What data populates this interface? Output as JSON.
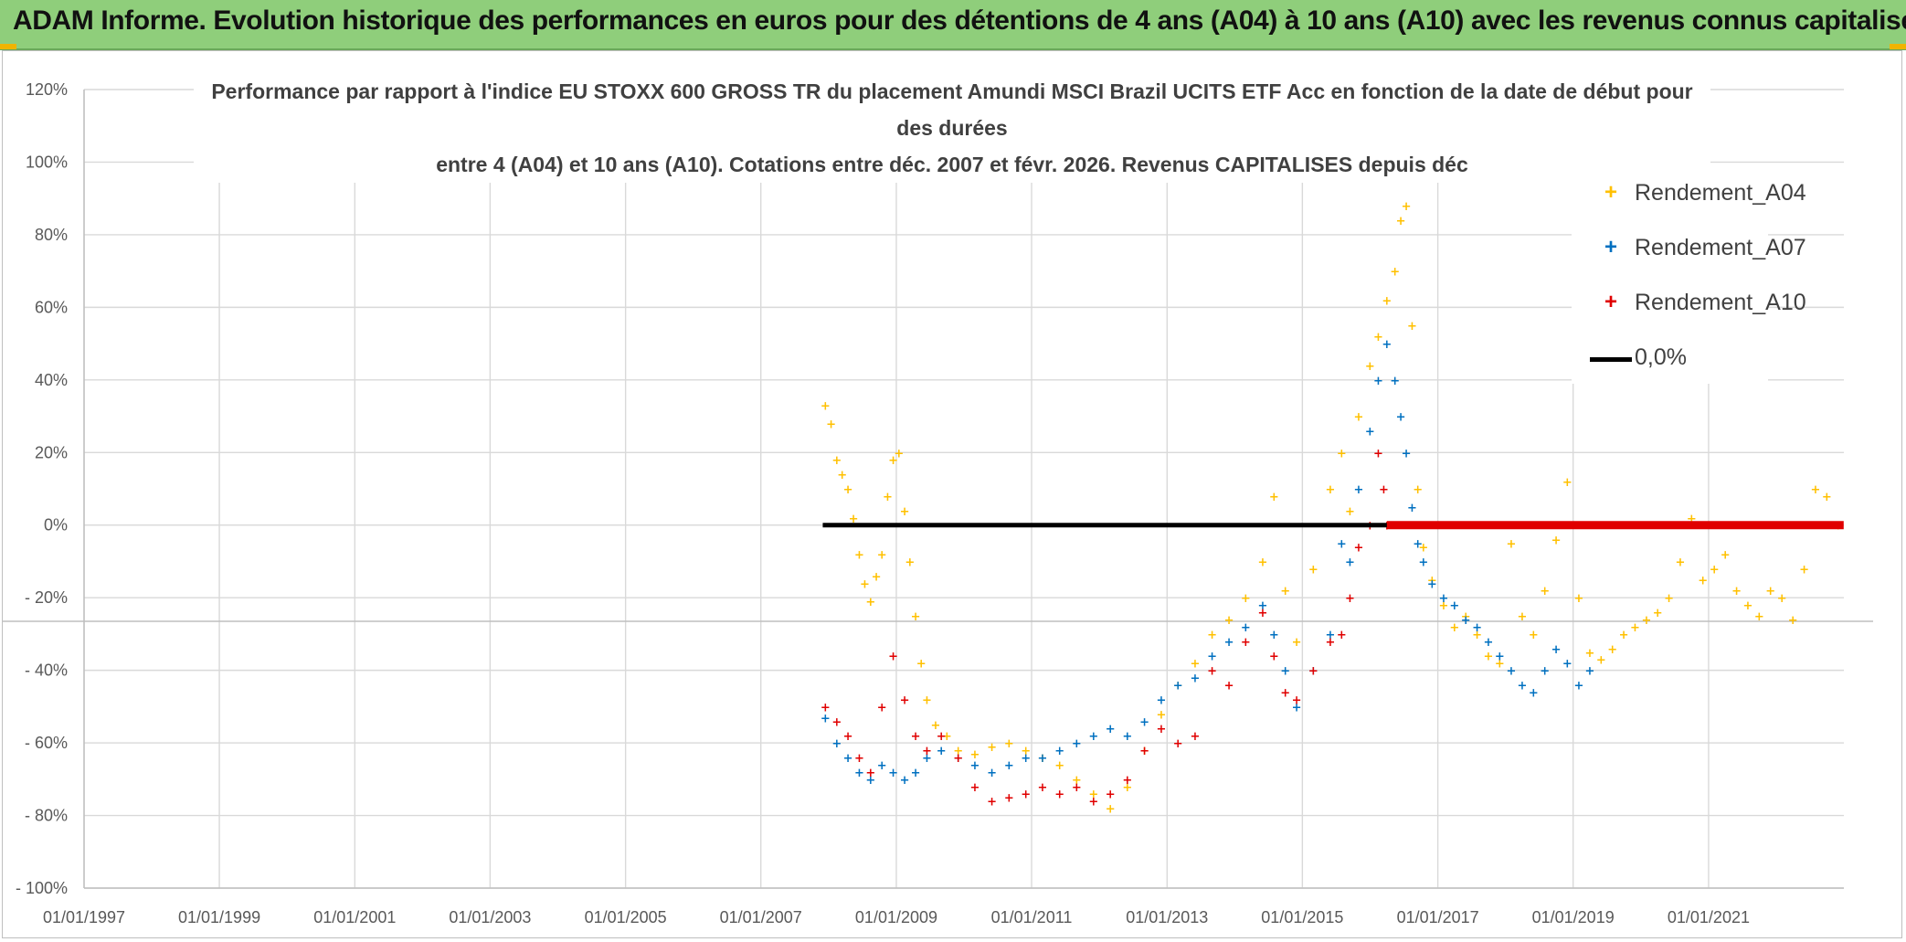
{
  "header": {
    "banner": "ADAM Informe. Evolution historique des performances en euros pour des détentions de 4 ans (A04) à 10 ans (A10) avec les revenus connus capitalisés"
  },
  "chart": {
    "title_lines": [
      "Performance  par rapport à l'indice EU STOXX 600 GROSS TR  du placement Amundi MSCI Brazil UCITS ETF Acc en fonction de la date de début pour",
      "des durées",
      "entre 4 (A04) et 10 ans (A10). Cotations entre déc. 2007 et févr. 2026. Revenus CAPITALISES depuis déc"
    ]
  },
  "legend": {
    "items": [
      {
        "label": "Rendement_A04",
        "marker": "+",
        "color": "#ffc000"
      },
      {
        "label": "Rendement_A07",
        "marker": "+",
        "color": "#0070c0"
      },
      {
        "label": "Rendement_A10",
        "marker": "+",
        "color": "#e00000"
      },
      {
        "label": "0,0%",
        "marker": "line",
        "color": "#000000"
      }
    ]
  },
  "colors": {
    "A04": "#ffc000",
    "A07": "#0070c0",
    "A10": "#e00000",
    "zero": "#000000",
    "gridline": "#d9d9d9",
    "banner_bg": "#8fce7b"
  },
  "chart_data": {
    "type": "scatter",
    "x_axis": {
      "type": "date",
      "range": [
        "1997-01-01",
        "2023-01-01"
      ],
      "tick_labels": [
        "01/01/1997",
        "01/01/1999",
        "01/01/2001",
        "01/01/2003",
        "01/01/2005",
        "01/01/2007",
        "01/01/2009",
        "01/01/2011",
        "01/01/2013",
        "01/01/2015",
        "01/01/2017",
        "01/01/2019",
        "01/01/2021"
      ]
    },
    "y_axis": {
      "unit": "percent",
      "range": [
        -100,
        120
      ],
      "tick_values": [
        120,
        100,
        80,
        60,
        40,
        20,
        0,
        -20,
        -40,
        -60,
        -80,
        -100
      ],
      "tick_labels": [
        "120%",
        "100%",
        "80%",
        "60%",
        "40%",
        "20%",
        "0%",
        "- 20%",
        "- 40%",
        "- 60%",
        "- 80%",
        "- 100%"
      ]
    },
    "grid": {
      "horizontal": true,
      "vertical": true
    },
    "legend_position": "top-right",
    "series": [
      {
        "name": "Rendement_A04",
        "marker": "+",
        "color": "#ffc000",
        "points": [
          [
            "2007-12-15",
            33
          ],
          [
            "2008-01-15",
            28
          ],
          [
            "2008-02-15",
            18
          ],
          [
            "2008-03-15",
            14
          ],
          [
            "2008-04-15",
            10
          ],
          [
            "2008-05-15",
            2
          ],
          [
            "2008-06-15",
            -8
          ],
          [
            "2008-07-15",
            -16
          ],
          [
            "2008-08-15",
            -21
          ],
          [
            "2008-09-15",
            -14
          ],
          [
            "2008-10-15",
            -8
          ],
          [
            "2008-11-15",
            8
          ],
          [
            "2008-12-15",
            18
          ],
          [
            "2009-01-15",
            20
          ],
          [
            "2009-02-15",
            4
          ],
          [
            "2009-03-15",
            -10
          ],
          [
            "2009-04-15",
            -25
          ],
          [
            "2009-05-15",
            -38
          ],
          [
            "2009-06-15",
            -48
          ],
          [
            "2009-08-01",
            -55
          ],
          [
            "2009-10-01",
            -58
          ],
          [
            "2009-12-01",
            -62
          ],
          [
            "2010-03-01",
            -63
          ],
          [
            "2010-06-01",
            -61
          ],
          [
            "2010-09-01",
            -60
          ],
          [
            "2010-12-01",
            -62
          ],
          [
            "2011-03-01",
            -64
          ],
          [
            "2011-06-01",
            -66
          ],
          [
            "2011-09-01",
            -70
          ],
          [
            "2011-12-01",
            -74
          ],
          [
            "2012-03-01",
            -78
          ],
          [
            "2012-06-01",
            -72
          ],
          [
            "2012-09-01",
            -62
          ],
          [
            "2012-12-01",
            -52
          ],
          [
            "2013-03-01",
            -44
          ],
          [
            "2013-06-01",
            -38
          ],
          [
            "2013-09-01",
            -30
          ],
          [
            "2013-12-01",
            -26
          ],
          [
            "2014-03-01",
            -20
          ],
          [
            "2014-06-01",
            -10
          ],
          [
            "2014-08-01",
            8
          ],
          [
            "2014-10-01",
            -18
          ],
          [
            "2014-12-01",
            -32
          ],
          [
            "2015-03-01",
            -12
          ],
          [
            "2015-06-01",
            10
          ],
          [
            "2015-08-01",
            20
          ],
          [
            "2015-09-15",
            4
          ],
          [
            "2015-11-01",
            30
          ],
          [
            "2016-01-01",
            44
          ],
          [
            "2016-02-15",
            52
          ],
          [
            "2016-04-01",
            62
          ],
          [
            "2016-05-15",
            70
          ],
          [
            "2016-06-15",
            84
          ],
          [
            "2016-07-15",
            88
          ],
          [
            "2016-08-15",
            55
          ],
          [
            "2016-09-15",
            10
          ],
          [
            "2016-10-15",
            -6
          ],
          [
            "2016-12-01",
            -15
          ],
          [
            "2017-02-01",
            -22
          ],
          [
            "2017-04-01",
            -28
          ],
          [
            "2017-06-01",
            -25
          ],
          [
            "2017-08-01",
            -30
          ],
          [
            "2017-10-01",
            -36
          ],
          [
            "2017-12-01",
            -38
          ],
          [
            "2018-02-01",
            -5
          ],
          [
            "2018-04-01",
            -25
          ],
          [
            "2018-06-01",
            -30
          ],
          [
            "2018-08-01",
            -18
          ],
          [
            "2018-10-01",
            -4
          ],
          [
            "2018-12-01",
            12
          ],
          [
            "2019-02-01",
            -20
          ],
          [
            "2019-04-01",
            -35
          ],
          [
            "2019-06-01",
            -37
          ],
          [
            "2019-08-01",
            -34
          ],
          [
            "2019-10-01",
            -30
          ],
          [
            "2019-12-01",
            -28
          ],
          [
            "2020-02-01",
            -26
          ],
          [
            "2020-04-01",
            -24
          ],
          [
            "2020-06-01",
            -20
          ],
          [
            "2020-08-01",
            -10
          ],
          [
            "2020-10-01",
            2
          ],
          [
            "2020-12-01",
            -15
          ],
          [
            "2021-02-01",
            -12
          ],
          [
            "2021-04-01",
            -8
          ],
          [
            "2021-06-01",
            -18
          ],
          [
            "2021-08-01",
            -22
          ],
          [
            "2021-10-01",
            -25
          ],
          [
            "2021-12-01",
            -18
          ],
          [
            "2022-02-01",
            -20
          ],
          [
            "2022-04-01",
            -26
          ],
          [
            "2022-06-01",
            -12
          ],
          [
            "2022-08-01",
            10
          ],
          [
            "2022-10-01",
            8
          ],
          [
            "2022-12-01",
            0
          ]
        ]
      },
      {
        "name": "Rendement_A07",
        "marker": "+",
        "color": "#0070c0",
        "points": [
          [
            "2007-12-15",
            -53
          ],
          [
            "2008-02-15",
            -60
          ],
          [
            "2008-04-15",
            -64
          ],
          [
            "2008-06-15",
            -68
          ],
          [
            "2008-08-15",
            -70
          ],
          [
            "2008-10-15",
            -66
          ],
          [
            "2008-12-15",
            -68
          ],
          [
            "2009-02-15",
            -70
          ],
          [
            "2009-04-15",
            -68
          ],
          [
            "2009-06-15",
            -64
          ],
          [
            "2009-09-01",
            -62
          ],
          [
            "2009-12-01",
            -64
          ],
          [
            "2010-03-01",
            -66
          ],
          [
            "2010-06-01",
            -68
          ],
          [
            "2010-09-01",
            -66
          ],
          [
            "2010-12-01",
            -64
          ],
          [
            "2011-03-01",
            -64
          ],
          [
            "2011-06-01",
            -62
          ],
          [
            "2011-09-01",
            -60
          ],
          [
            "2011-12-01",
            -58
          ],
          [
            "2012-03-01",
            -56
          ],
          [
            "2012-06-01",
            -58
          ],
          [
            "2012-09-01",
            -54
          ],
          [
            "2012-12-01",
            -48
          ],
          [
            "2013-03-01",
            -44
          ],
          [
            "2013-06-01",
            -42
          ],
          [
            "2013-09-01",
            -36
          ],
          [
            "2013-12-01",
            -32
          ],
          [
            "2014-03-01",
            -28
          ],
          [
            "2014-06-01",
            -22
          ],
          [
            "2014-08-01",
            -30
          ],
          [
            "2014-10-01",
            -40
          ],
          [
            "2014-12-01",
            -50
          ],
          [
            "2015-03-01",
            -40
          ],
          [
            "2015-06-01",
            -30
          ],
          [
            "2015-08-01",
            -5
          ],
          [
            "2015-09-15",
            -10
          ],
          [
            "2015-11-01",
            10
          ],
          [
            "2016-01-01",
            26
          ],
          [
            "2016-02-15",
            40
          ],
          [
            "2016-04-01",
            50
          ],
          [
            "2016-05-15",
            40
          ],
          [
            "2016-06-15",
            30
          ],
          [
            "2016-07-15",
            20
          ],
          [
            "2016-08-15",
            5
          ],
          [
            "2016-09-15",
            -5
          ],
          [
            "2016-10-15",
            -10
          ],
          [
            "2016-12-01",
            -16
          ],
          [
            "2017-02-01",
            -20
          ],
          [
            "2017-04-01",
            -22
          ],
          [
            "2017-06-01",
            -26
          ],
          [
            "2017-08-01",
            -28
          ],
          [
            "2017-10-01",
            -32
          ],
          [
            "2017-12-01",
            -36
          ],
          [
            "2018-02-01",
            -40
          ],
          [
            "2018-04-01",
            -44
          ],
          [
            "2018-06-01",
            -46
          ],
          [
            "2018-08-01",
            -40
          ],
          [
            "2018-10-01",
            -34
          ],
          [
            "2018-12-01",
            -38
          ],
          [
            "2019-02-01",
            -44
          ],
          [
            "2019-04-01",
            -40
          ]
        ]
      },
      {
        "name": "Rendement_A10",
        "marker": "+",
        "color": "#e00000",
        "points": [
          [
            "2007-12-15",
            -50
          ],
          [
            "2008-02-15",
            -54
          ],
          [
            "2008-04-15",
            -58
          ],
          [
            "2008-06-15",
            -64
          ],
          [
            "2008-08-15",
            -68
          ],
          [
            "2008-10-15",
            -50
          ],
          [
            "2008-12-15",
            -36
          ],
          [
            "2009-02-15",
            -48
          ],
          [
            "2009-04-15",
            -58
          ],
          [
            "2009-06-15",
            -62
          ],
          [
            "2009-09-01",
            -58
          ],
          [
            "2009-12-01",
            -64
          ],
          [
            "2010-03-01",
            -72
          ],
          [
            "2010-06-01",
            -76
          ],
          [
            "2010-09-01",
            -75
          ],
          [
            "2010-12-01",
            -74
          ],
          [
            "2011-03-01",
            -72
          ],
          [
            "2011-06-01",
            -74
          ],
          [
            "2011-09-01",
            -72
          ],
          [
            "2011-12-01",
            -76
          ],
          [
            "2012-03-01",
            -74
          ],
          [
            "2012-06-01",
            -70
          ],
          [
            "2012-09-01",
            -62
          ],
          [
            "2012-12-01",
            -56
          ],
          [
            "2013-03-01",
            -60
          ],
          [
            "2013-06-01",
            -58
          ],
          [
            "2013-09-01",
            -40
          ],
          [
            "2013-12-01",
            -44
          ],
          [
            "2014-03-01",
            -32
          ],
          [
            "2014-06-01",
            -24
          ],
          [
            "2014-08-01",
            -36
          ],
          [
            "2014-10-01",
            -46
          ],
          [
            "2014-12-01",
            -48
          ],
          [
            "2015-03-01",
            -40
          ],
          [
            "2015-06-01",
            -32
          ],
          [
            "2015-08-01",
            -30
          ],
          [
            "2015-09-15",
            -20
          ],
          [
            "2015-11-01",
            -6
          ],
          [
            "2016-01-01",
            0
          ],
          [
            "2016-02-15",
            20
          ],
          [
            "2016-03-15",
            10
          ],
          [
            "2016-04-01",
            0
          ]
        ],
        "flat_segment": {
          "from": "2016-04-01",
          "to": "2022-12-31",
          "value": 0
        }
      },
      {
        "name": "0,0%",
        "type": "line",
        "color": "#000000",
        "points": [
          [
            "2007-12-01",
            0
          ],
          [
            "2016-04-01",
            0
          ]
        ]
      }
    ]
  }
}
